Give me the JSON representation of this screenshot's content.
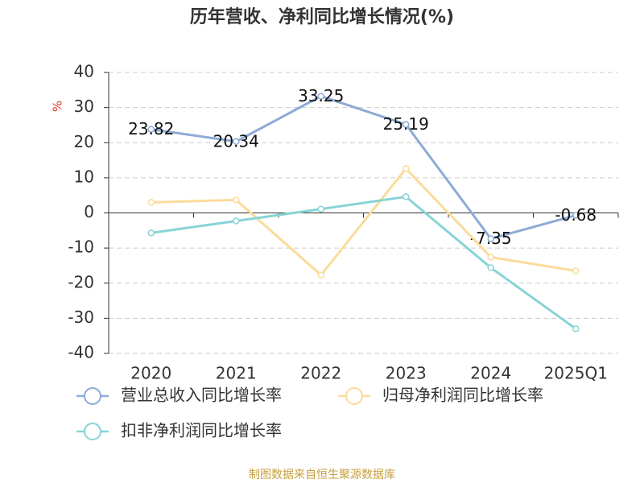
{
  "chart_data": {
    "type": "line",
    "title": "历年营收、净利同比增长情况(%)",
    "y_label": "%",
    "categories": [
      "2020",
      "2021",
      "2022",
      "2023",
      "2024",
      "2025Q1"
    ],
    "series": [
      {
        "name": "营业总收入同比增长率",
        "color": "#8eaad6",
        "values": [
          23.82,
          20.34,
          33.25,
          25.19,
          -7.35,
          -0.68
        ],
        "labels": true
      },
      {
        "name": "归母净利润同比增长率",
        "color": "#fbdb9a",
        "values": [
          3.0,
          3.7,
          -17.7,
          12.6,
          -12.6,
          -16.5
        ],
        "labels": false
      },
      {
        "name": "扣非净利润同比增长率",
        "color": "#88d4d6",
        "values": [
          -5.7,
          -2.3,
          1.1,
          4.6,
          -15.6,
          -33.0
        ],
        "labels": false
      }
    ],
    "ylim": [
      -40,
      40
    ],
    "yticks": [
      40,
      30,
      20,
      10,
      0,
      -10,
      -20,
      -30,
      -40
    ],
    "grid": true,
    "source": "制图数据来自恒生聚源数据库"
  }
}
